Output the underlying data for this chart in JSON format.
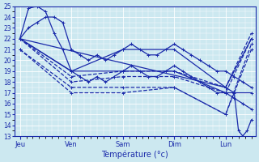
{
  "title": "Température (°c)",
  "background_color": "#cce8f0",
  "line_color": "#1a2aaa",
  "grid_color": "#ffffff",
  "ylim": [
    13,
    25
  ],
  "yticks": [
    13,
    14,
    15,
    16,
    17,
    18,
    19,
    20,
    21,
    22,
    23,
    24,
    25
  ],
  "day_labels": [
    "Jeu",
    "Ven",
    "Sam",
    "Dim",
    "Lun"
  ],
  "day_x": [
    0,
    48,
    96,
    144,
    192
  ],
  "xmax": 220,
  "series": [
    {
      "x": [
        0,
        8,
        16,
        24,
        32,
        40,
        48,
        56,
        64,
        72,
        80,
        88,
        96,
        104,
        112,
        120,
        128,
        136,
        144,
        152,
        160,
        168,
        176,
        184,
        192,
        200,
        208,
        216
      ],
      "y": [
        22.0,
        24.8,
        25.0,
        24.5,
        22.5,
        21.0,
        19.0,
        18.5,
        18.0,
        18.5,
        18.0,
        18.5,
        19.0,
        19.5,
        19.0,
        18.5,
        18.5,
        19.0,
        19.5,
        19.0,
        18.5,
        18.0,
        17.5,
        17.0,
        17.0,
        16.5,
        16.0,
        15.5
      ],
      "linestyle": "-"
    },
    {
      "x": [
        0,
        8,
        16,
        24,
        32,
        40,
        48,
        56,
        64,
        72,
        80,
        88,
        96,
        104,
        112,
        120,
        128,
        136,
        144,
        152,
        160,
        168,
        176,
        184,
        192,
        200,
        208,
        216
      ],
      "y": [
        22.0,
        23.0,
        23.5,
        24.0,
        24.0,
        23.5,
        21.0,
        20.5,
        20.0,
        20.5,
        20.0,
        20.5,
        21.0,
        21.5,
        21.0,
        20.5,
        20.5,
        21.0,
        21.5,
        21.0,
        20.5,
        20.0,
        19.5,
        19.0,
        19.0,
        18.5,
        18.0,
        17.5
      ],
      "linestyle": "-"
    },
    {
      "x": [
        0,
        48,
        96,
        144,
        192,
        216
      ],
      "y": [
        22.0,
        19.0,
        19.0,
        19.0,
        17.0,
        17.0
      ],
      "linestyle": "-"
    },
    {
      "x": [
        0,
        48,
        96,
        144,
        192,
        216
      ],
      "y": [
        22.0,
        19.0,
        21.0,
        21.0,
        17.5,
        22.0
      ],
      "linestyle": "-"
    },
    {
      "x": [
        0,
        48,
        96,
        144,
        192,
        216
      ],
      "y": [
        22.0,
        18.5,
        19.0,
        19.0,
        17.5,
        22.5
      ],
      "linestyle": "--"
    },
    {
      "x": [
        0,
        48,
        96,
        144,
        192,
        216
      ],
      "y": [
        22.0,
        18.0,
        18.5,
        18.5,
        17.0,
        22.0
      ],
      "linestyle": "--"
    },
    {
      "x": [
        0,
        48,
        96,
        144,
        192,
        216
      ],
      "y": [
        21.0,
        17.5,
        17.5,
        17.5,
        15.0,
        21.5
      ],
      "linestyle": "--"
    },
    {
      "x": [
        0,
        48,
        96,
        144,
        192,
        216
      ],
      "y": [
        21.0,
        17.0,
        17.0,
        17.5,
        15.0,
        21.0
      ],
      "linestyle": "--"
    },
    {
      "x": [
        0,
        192,
        200,
        204,
        208,
        212,
        216
      ],
      "y": [
        22.0,
        17.5,
        17.0,
        13.5,
        13.0,
        13.5,
        14.5
      ],
      "linestyle": "-"
    }
  ],
  "marker": "+",
  "markersize": 3.5,
  "linewidth": 0.9
}
